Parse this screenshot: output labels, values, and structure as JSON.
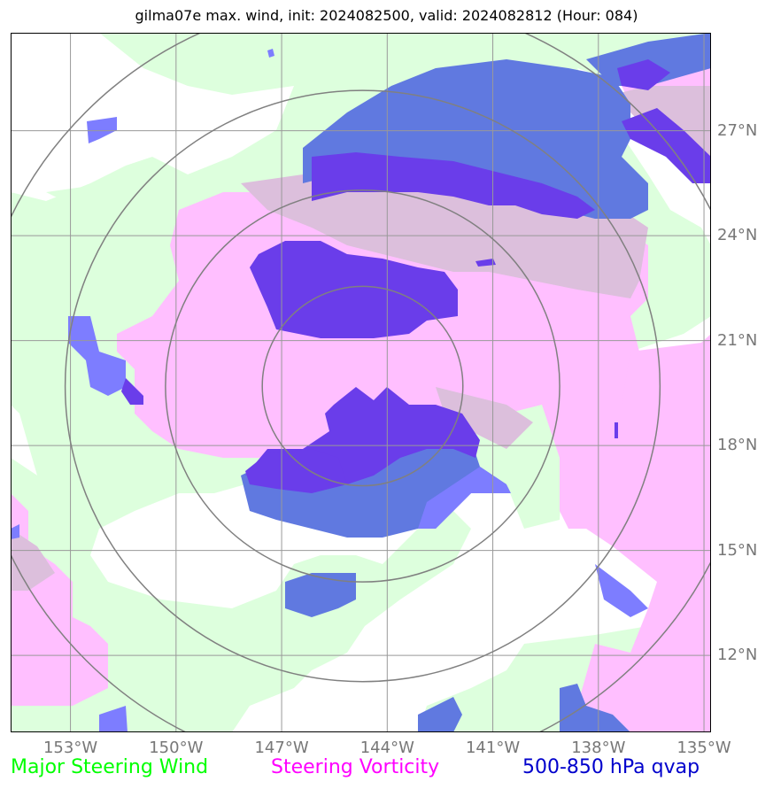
{
  "title": "gilma07e max. wind, init: 2024082500, valid: 2024082812 (Hour: 084)",
  "map": {
    "lat_ticks": [
      "27°N",
      "24°N",
      "21°N",
      "18°N",
      "15°N",
      "12°N"
    ],
    "lon_ticks": [
      "153°W",
      "150°W",
      "147°W",
      "144°W",
      "141°W",
      "138°W",
      "135°W"
    ],
    "lon_range": [
      -154.7,
      -134.8
    ],
    "lat_range": [
      9.8,
      29.8
    ],
    "storm_center": {
      "lon": -144.7,
      "lat": 19.7
    },
    "range_rings_deg": [
      2.85,
      5.6,
      8.45,
      11.1
    ]
  },
  "legend": [
    {
      "label": "Major Steering Wind",
      "color": "#00ff00"
    },
    {
      "label": "Steering Vorticity",
      "color": "#ff00ff"
    },
    {
      "label": "500-850 hPa qvap",
      "color": "#0000cc"
    }
  ],
  "colors": {
    "wind_fill": "#ddffdd",
    "vorticity_fill": "#ffbfff",
    "overlap_fill": "#dcbfdc",
    "qvap_fill": "#6079e0",
    "qvap_strong_fill": "#6a3dea",
    "qvap_light_fill": "#7d7dff",
    "grid": "#999999",
    "rings": "#808080"
  }
}
